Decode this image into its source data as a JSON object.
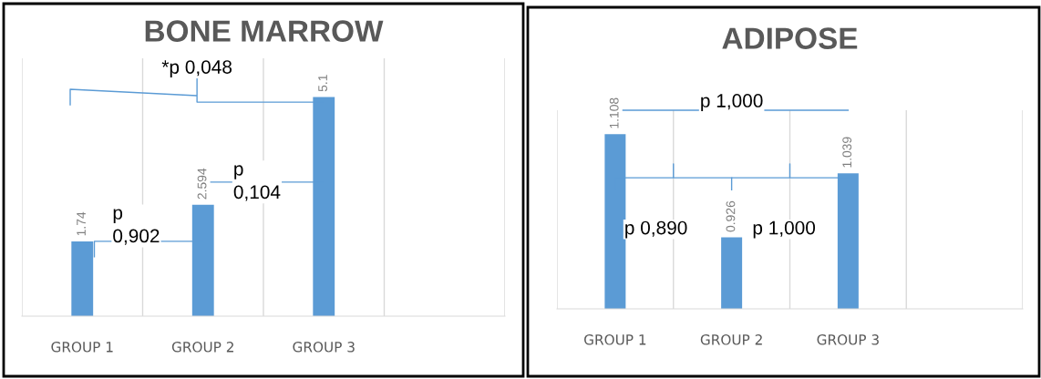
{
  "chart_data": [
    {
      "type": "bar",
      "title": "BONE MARROW",
      "categories": [
        "GROUP 1",
        "GROUP 2",
        "GROUP 3",
        null
      ],
      "values": [
        1.74,
        2.594,
        5.1,
        null
      ],
      "data_labels": true,
      "color": "#5b9bd5",
      "ylim": [
        0,
        6
      ],
      "tick_labels": "x",
      "grid": "x",
      "annotations": [
        "*p 0,048",
        "p\n0,104",
        "p\n0,902"
      ]
    },
    {
      "type": "bar",
      "title": "ADIPOSE",
      "categories": [
        "GROUP 1",
        "GROUP 2",
        "GROUP 3",
        null
      ],
      "values": [
        1.108,
        0.926,
        1.039,
        null
      ],
      "data_labels": true,
      "color": "#5b9bd5",
      "ylim": [
        0.8,
        1.15
      ],
      "tick_labels": "x",
      "grid": "x",
      "annotations": [
        "p 1,000",
        "p 0,890",
        "p 1,000"
      ]
    }
  ]
}
